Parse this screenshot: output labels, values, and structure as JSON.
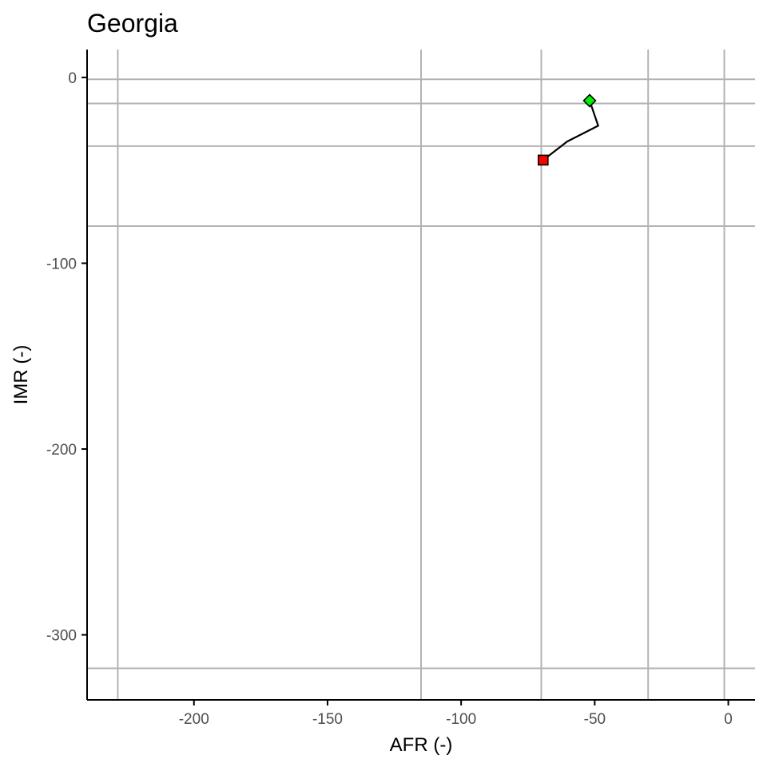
{
  "chart_data": {
    "type": "line",
    "title": "Georgia",
    "xlabel": "AFR (-)",
    "ylabel": "IMR (-)",
    "xlim": [
      -240,
      10
    ],
    "ylim": [
      -335,
      15
    ],
    "x_ticks": [
      -200,
      -150,
      -100,
      -50,
      0
    ],
    "x_tick_labels": [
      "-200",
      "-150",
      "-100",
      "-50",
      "0"
    ],
    "y_ticks": [
      0,
      -100,
      -200,
      -300
    ],
    "y_tick_labels": [
      "0",
      "-100",
      "-200",
      "-300"
    ],
    "grid": false,
    "reference_lines": {
      "vertical_x": [
        -228.5,
        -115,
        -70,
        -30,
        -1.5
      ],
      "horizontal_y": [
        -1,
        -14,
        -37,
        -80,
        -318
      ]
    },
    "series": [
      {
        "x": [
          -69.3,
          -60.3,
          -48.7,
          -51.9
        ],
        "y": [
          -44.5,
          -34.5,
          -26,
          -12.5
        ],
        "line_color": "#000000"
      }
    ],
    "markers": [
      {
        "shape": "square",
        "x": -69.3,
        "y": -44.5,
        "color": "#ff0000"
      },
      {
        "shape": "diamond",
        "x": -51.9,
        "y": -12.5,
        "color": "#00ee00"
      }
    ]
  }
}
